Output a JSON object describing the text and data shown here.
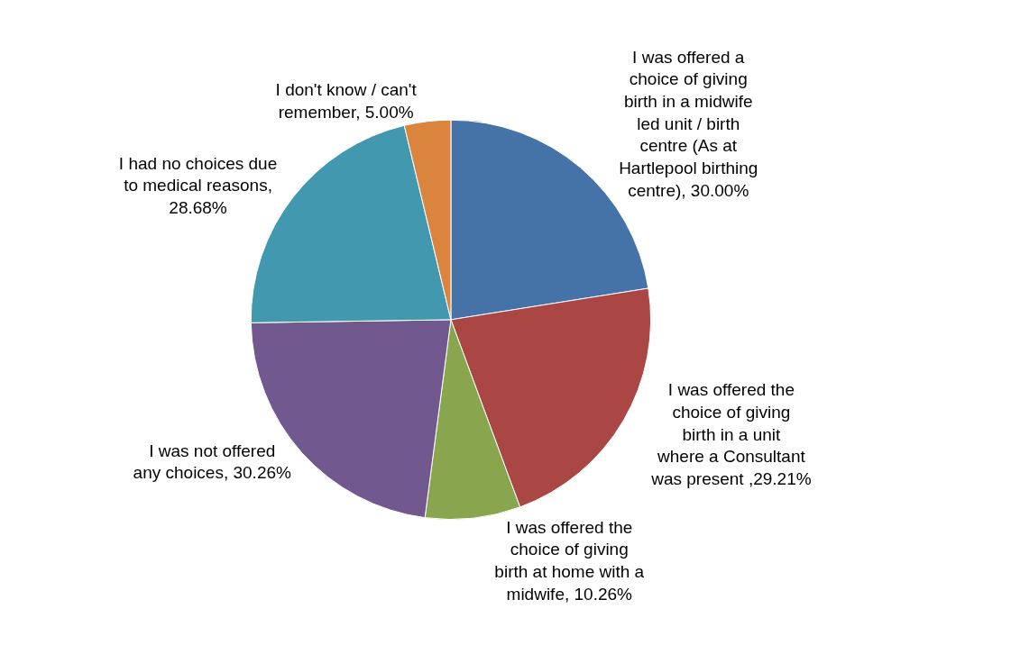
{
  "chart_data": {
    "type": "pie",
    "categories": [
      "I was offered a choice of giving birth in a midwife led unit / birth centre (As at Hartlepool birthing centre)",
      "I was offered the choice of giving birth in a unit where a Consultant was present",
      "I was offered the choice of giving birth at home with a midwife",
      "I was not offered any choices",
      "I had no choices due to medical reasons",
      "I don't know / can't remember"
    ],
    "values": [
      30.0,
      29.21,
      10.26,
      30.26,
      28.68,
      5.0
    ],
    "value_labels": [
      ", 30.00%",
      " ,29.21%",
      ", 10.26%",
      ", 30.26%",
      ", 28.68%",
      ", 5.00%"
    ],
    "colors": [
      "#4572a7",
      "#aa4643",
      "#89a54e",
      "#71588f",
      "#4198af",
      "#db843d"
    ],
    "legend": false
  }
}
